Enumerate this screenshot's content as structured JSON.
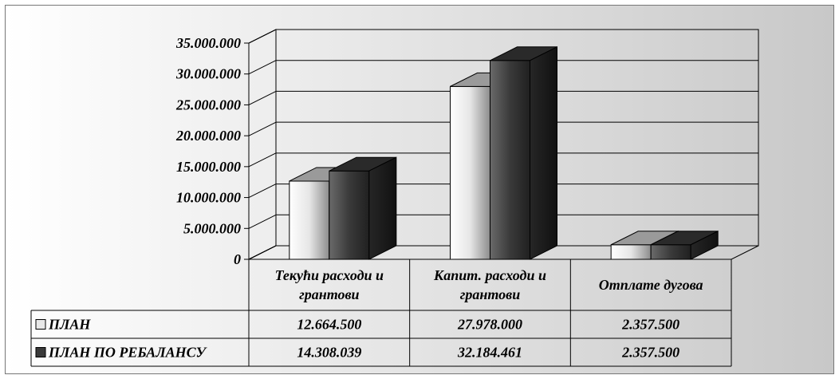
{
  "chart_data": {
    "type": "bar",
    "title": "",
    "xlabel": "",
    "ylabel": "",
    "categories": [
      "Текући расходи и грантови",
      "Капит. расходи и грантови",
      "Отплате дугова"
    ],
    "category_lines": [
      [
        "Текући расходи и",
        "грантови"
      ],
      [
        "Капит. расходи и",
        "грантови"
      ],
      [
        "Отплате дугова"
      ]
    ],
    "ylim": [
      0,
      35000000
    ],
    "y_ticks": [
      0,
      5000000,
      10000000,
      15000000,
      20000000,
      25000000,
      30000000,
      35000000
    ],
    "y_tick_labels": [
      "0",
      "5.000.000",
      "10.000.000",
      "15.000.000",
      "20.000.000",
      "25.000.000",
      "30.000.000",
      "35.000.000"
    ],
    "grid": true,
    "legend": "data-table",
    "series": [
      {
        "name": "ПЛАН",
        "values": [
          12664500,
          27978000,
          2357500
        ],
        "value_labels": [
          "12.664.500",
          "27.978.000",
          "2.357.500"
        ],
        "color_front": "#f2f2f2",
        "color_top": "#9a9a9a",
        "color_side": "#6e6e6e"
      },
      {
        "name": "ПЛАН ПО РЕБАЛАНСУ",
        "values": [
          14308039,
          32184461,
          2357500
        ],
        "value_labels": [
          "14.308.039",
          "32.184.461",
          "2.357.500"
        ],
        "color_front": "#3c3c3c",
        "color_top": "#2a2a2a",
        "color_side": "#1e1e1e"
      }
    ]
  }
}
